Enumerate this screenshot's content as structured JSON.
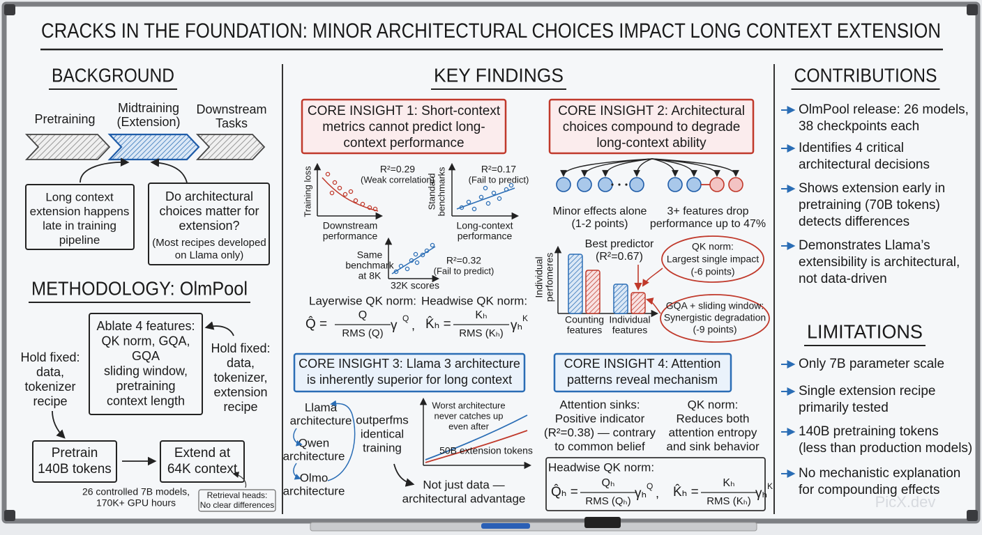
{
  "title": "CRACKS IN THE FOUNDATION: MINOR ARCHITECTURAL CHOICES IMPACT LONG CONTEXT EXTENSION",
  "background": {
    "heading": "BACKGROUND",
    "stages": [
      [
        "Pretraining"
      ],
      [
        "Midtraining",
        "(Extension)"
      ],
      [
        "Downstream",
        "Tasks"
      ]
    ],
    "note": [
      "Long context",
      "extension happens",
      "late in training",
      "pipeline"
    ],
    "question": [
      "Do architectural",
      "choices matter for",
      "extension?"
    ],
    "question_note": [
      "(Most recipes developed",
      "on Llama only)"
    ]
  },
  "methodology": {
    "heading": "METHODOLOGY: OlmPool",
    "ablate": [
      "Ablate 4 features:",
      "QK norm, GQA,",
      "GQA",
      "sliding window,",
      "pretraining",
      "context length"
    ],
    "hold_left": [
      "Hold fixed:",
      "data,",
      "tokenizer",
      "recipe"
    ],
    "hold_right": [
      "Hold fixed:",
      "data,",
      "tokenizer,",
      "extension",
      "recipe"
    ],
    "pretrain": [
      "Pretrain",
      "140B tokens"
    ],
    "extend": [
      "Extend at",
      "64K context"
    ],
    "scale": [
      "26 controlled 7B models,",
      "170K+ GPU hours"
    ],
    "retrieval": [
      "Retrieval heads:",
      "No clear differences"
    ]
  },
  "findings": {
    "heading": "KEY FINDINGS",
    "insights": [
      [
        "CORE INSIGHT 1: Short-context",
        "metrics cannot predict long-",
        "context performance"
      ],
      [
        "CORE INSIGHT 2: Architectural",
        "choices compound to degrade",
        "long-context ability"
      ],
      [
        "CORE INSIGHT 3: Llama 3 architecture",
        "is inherently superior for long context"
      ],
      [
        "CORE INSIGHT 4: Attention",
        "patterns reveal mechanism"
      ]
    ],
    "plots": [
      {
        "r2": "R²=0.29",
        "note": "(Weak correlation)",
        "ylabel": [
          "Training loss"
        ],
        "xlabel": [
          "Downstream",
          "performance"
        ]
      },
      {
        "r2": "R²=0.17",
        "note": "(Fail to predict)",
        "ylabel": [
          "Standard",
          "benchmarks"
        ],
        "xlabel": [
          "Long-context",
          "performance"
        ]
      },
      {
        "r2": "R²=0.32",
        "note": "(Fail to predict)",
        "ylabel": [
          "Same",
          "benchmark",
          "at 8K"
        ],
        "xlabel": [
          "32K scores"
        ]
      }
    ],
    "formulas": [
      {
        "label": "Layerwise QK norm:",
        "lhs": "Q̂ =",
        "num": "Q",
        "den": "RMS (Q)",
        "factor": "γ",
        "sup": "Q",
        "trail": ","
      },
      {
        "label": "Headwise QK norm:",
        "lhs": "K̂ₕ =",
        "num": "Kₕ",
        "den": "RMS (Kₕ)",
        "factor": "γₕ",
        "sup": "K"
      }
    ],
    "chain_left": [
      "Minor effects alone",
      "(1-2 points)"
    ],
    "chain_right": [
      "3+ features drop",
      "performance up to 47%"
    ],
    "bar_ylabel": [
      "Individual",
      "perfomeres"
    ],
    "best": [
      "Best predictor",
      "(R²=0.67)"
    ],
    "bar_labels": [
      [
        "Counting",
        "features"
      ],
      [
        "Individual",
        "features"
      ]
    ],
    "callouts": [
      [
        "QK norm:",
        "Largest single impact",
        "(-6 points)"
      ],
      [
        "GQA + sliding window:",
        "Synergistic degradation",
        "(-9 points)"
      ]
    ],
    "archs": [
      [
        "Llama",
        "architecture"
      ],
      [
        "Qwen",
        "architecture"
      ],
      [
        "Olmo",
        "architecture"
      ]
    ],
    "outperforms": [
      "outperfms",
      "identical",
      "training"
    ],
    "chart_note": [
      "Worst architecture",
      "never catches up",
      "even after"
    ],
    "tokens": "50B extension tokens",
    "conclusion": [
      "Not just data —",
      "architectural advantage"
    ],
    "sinks": [
      "Attention sinks:",
      "Positive indicator",
      "(R²=0.38) — contrary",
      "to common belief"
    ],
    "qk": [
      "QK norm:",
      "Reduces both",
      "attention entropy",
      "and sink behavior"
    ],
    "headwise_label": "Headwise QK norm:",
    "headwise": [
      {
        "lhs": "Q̂ₕ =",
        "num": "Qₕ",
        "den": "RMS (Qₕ)",
        "factor": "γₕ",
        "sup": "Q",
        "trail": ","
      },
      {
        "lhs": "K̂ₕ =",
        "num": "Kₕ",
        "den": "RMS (Kₕ)",
        "factor": "γₕ",
        "sup": "K"
      }
    ]
  },
  "contributions": {
    "heading": "CONTRIBUTIONS",
    "items": [
      [
        "OlmPool release: 26 models,",
        "38 checkpoints each"
      ],
      [
        "Identifies 4 critical",
        "architectural decisions"
      ],
      [
        "Shows extension early in",
        "pretraining (70B tokens)",
        "detects differences"
      ],
      [
        "Demonstrates Llama’s",
        "extensibility is architectural,",
        "not data-driven"
      ]
    ]
  },
  "limitations": {
    "heading": "LIMITATIONS",
    "items": [
      [
        "Only 7B parameter scale"
      ],
      [
        "Single extension recipe",
        "primarily tested"
      ],
      [
        "140B pretraining tokens",
        "(less than production models)"
      ],
      [
        "No mechanistic explanation",
        "for compounding effects"
      ]
    ]
  },
  "watermark": "PicX.dev"
}
